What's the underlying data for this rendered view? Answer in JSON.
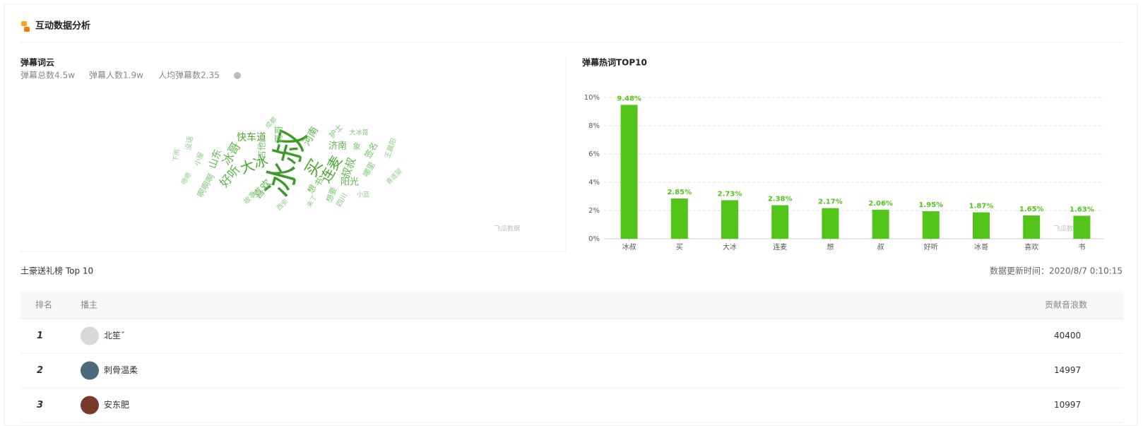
{
  "header": {
    "title": "互动数据分析"
  },
  "wordcloud": {
    "title": "弹幕词云",
    "stats": [
      "弹幕总数4.5w",
      "弹幕人数1.9w",
      "人均弹幕数2.35"
    ],
    "words": [
      "冰叔",
      "买",
      "大冰",
      "连麦",
      "快车道",
      "冰哥",
      "好听",
      "山东",
      "喜欢",
      "河南",
      "济南",
      "叔叔",
      "阳光",
      "想",
      "书",
      "护士",
      "大冰哥",
      "哥哥",
      "成都",
      "象",
      "签名",
      "哪里",
      "吉他",
      "四川",
      "小蓝",
      "想要",
      "西安",
      "故事",
      "啊啊啊",
      "下雨",
      "小屋",
      "嗯嗯",
      "来了",
      "王晨阳",
      "没话",
      "喜连婴"
    ]
  },
  "watermark": "飞瓜数据",
  "chart_data": {
    "type": "bar",
    "title": "弹幕热词TOP10",
    "categories": [
      "冰叔",
      "买",
      "大冰",
      "连麦",
      "想",
      "叔",
      "好听",
      "冰哥",
      "喜欢",
      "书"
    ],
    "values": [
      9.48,
      2.85,
      2.73,
      2.38,
      2.17,
      2.06,
      1.95,
      1.87,
      1.65,
      1.63
    ],
    "value_labels": [
      "9.48%",
      "2.85%",
      "2.73%",
      "2.38%",
      "2.17%",
      "2.06%",
      "1.95%",
      "1.87%",
      "1.65%",
      "1.63%"
    ],
    "color": "#52c41a",
    "ylim": [
      0,
      10
    ],
    "yticks": [
      {
        "value": 0,
        "label": "0%"
      },
      {
        "value": 2,
        "label": "2%"
      },
      {
        "value": 4,
        "label": "4%"
      },
      {
        "value": 6,
        "label": "6%"
      },
      {
        "value": 8,
        "label": "8%"
      },
      {
        "value": 10,
        "label": "10%"
      }
    ],
    "grid": true
  },
  "table": {
    "title": "土豪送礼榜 Top 10",
    "update_time": "数据更新时间：2020/8/7 0:10:15",
    "columns": [
      "排名",
      "播主",
      "贡献音浪数"
    ],
    "rows": [
      [
        "1",
        "北笙ˇ",
        "40400"
      ],
      [
        "2",
        "刺骨温柔",
        "14997"
      ],
      [
        "3",
        "安东肥",
        "10997"
      ]
    ]
  }
}
